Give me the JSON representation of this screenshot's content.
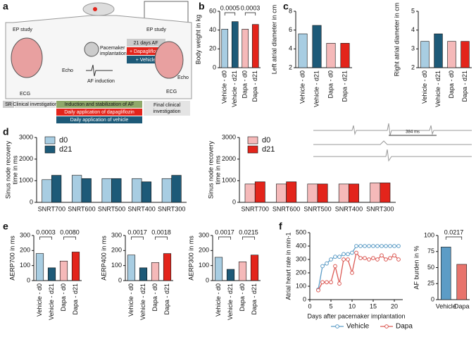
{
  "diagram": {
    "panel": "a",
    "ep_study_left": "EP study",
    "echo_left": "Echo",
    "ecg_left": "ECG",
    "pacemaker": [
      "Pacemaker",
      "implantation"
    ],
    "af_induction": "AF induction",
    "days_af": "21 days AF",
    "dapa": "+ Dapagliflozin",
    "vehicle": "+ Vehicle",
    "ep_study_right": "EP study",
    "echo_right": "Echo",
    "ecg_right": "ECG",
    "sr": "SR",
    "clinical": "Clinical investigation",
    "induction": "Induction and stabilization of AF",
    "daily_dapa": "Daily application of dapagliflozin",
    "daily_vehicle": "Daily application of vehicle",
    "final": [
      "Final clinical",
      "investigation"
    ]
  },
  "inset": {
    "label": "384 ms"
  },
  "chart_data": [
    {
      "type": "bar",
      "panel": "b",
      "ylabel": "Body weight in kg",
      "categories": [
        "Vehicle - d0",
        "Vehicle - d21",
        "Dapa - d0",
        "Dapa - d21"
      ],
      "values": [
        41,
        49,
        41,
        46
      ],
      "colors": [
        "#a8cde2",
        "#1d5a78",
        "#f5b9b9",
        "#e3241b"
      ],
      "ylim": [
        0,
        60
      ],
      "yticks": [
        0,
        20,
        40,
        60
      ],
      "annotations": [
        "0.0005",
        "0.0003"
      ]
    },
    {
      "type": "bar",
      "panel": "c",
      "ylabel": "Left atrial diameter in cm",
      "categories": [
        "Vehicle - d0",
        "Vehicle - d21",
        "Dapa - d0",
        "Dapa - d21"
      ],
      "values": [
        5.6,
        6.5,
        4.6,
        4.6
      ],
      "colors": [
        "#a8cde2",
        "#1d5a78",
        "#f5b9b9",
        "#e3241b"
      ],
      "ylim": [
        2,
        8
      ],
      "yticks": [
        2,
        4,
        6,
        8
      ]
    },
    {
      "type": "bar",
      "ylabel": "Right atrial diameter in cm",
      "categories": [
        "Vehicle - d0",
        "Vehicle - d21",
        "Dapa - d0",
        "Dapa - d21"
      ],
      "values": [
        3.4,
        3.8,
        3.4,
        3.4
      ],
      "colors": [
        "#a8cde2",
        "#1d5a78",
        "#f5b9b9",
        "#e3241b"
      ],
      "ylim": [
        2,
        5
      ],
      "yticks": [
        2,
        3,
        4,
        5
      ]
    },
    {
      "type": "bar",
      "panel": "d",
      "ylabel": [
        "Sinus node recovery",
        "time in ms"
      ],
      "categories": [
        "SNRT700",
        "SNRT600",
        "SNRT500",
        "SNRT400",
        "SNRT300"
      ],
      "series": [
        {
          "name": "d0",
          "color": "#a8cde2",
          "values": [
            1050,
            1250,
            1100,
            1100,
            1100
          ]
        },
        {
          "name": "d21",
          "color": "#1d5a78",
          "values": [
            1250,
            1100,
            1100,
            950,
            1250
          ]
        }
      ],
      "ylim": [
        0,
        3000
      ],
      "yticks": [
        0,
        1000,
        2000,
        3000
      ]
    },
    {
      "type": "bar",
      "ylabel": [
        "Sinus node recovery",
        "time in ms"
      ],
      "categories": [
        "SNRT700",
        "SNRT600",
        "SNRT500",
        "SNRT400",
        "SNRT300"
      ],
      "series": [
        {
          "name": "d0",
          "color": "#f5b9b9",
          "values": [
            850,
            850,
            850,
            850,
            900
          ]
        },
        {
          "name": "d21",
          "color": "#e3241b",
          "values": [
            950,
            950,
            850,
            850,
            900
          ]
        }
      ],
      "ylim": [
        0,
        3000
      ],
      "yticks": [
        0,
        1000,
        2000,
        3000
      ]
    },
    {
      "type": "bar",
      "panel": "e",
      "ylabel": "AERP700 in ms",
      "categories": [
        "Vehicle - d0",
        "Vehicle - d21",
        "Dapa - d0",
        "Dapa - d21"
      ],
      "values": [
        180,
        85,
        130,
        190
      ],
      "colors": [
        "#a8cde2",
        "#1d5a78",
        "#f5b9b9",
        "#e3241b"
      ],
      "ylim": [
        0,
        300
      ],
      "yticks": [
        0,
        100,
        200,
        300
      ],
      "annotations": [
        "0.0003",
        "0.0080"
      ]
    },
    {
      "type": "bar",
      "ylabel": "AERP400 in ms",
      "categories": [
        "Vehicle - d0",
        "Vehicle - d21",
        "Dapa - d0",
        "Dapa - d21"
      ],
      "values": [
        170,
        85,
        120,
        180
      ],
      "colors": [
        "#a8cde2",
        "#1d5a78",
        "#f5b9b9",
        "#e3241b"
      ],
      "ylim": [
        0,
        300
      ],
      "yticks": [
        0,
        100,
        200,
        300
      ],
      "annotations": [
        "0.0017",
        "0.0018"
      ]
    },
    {
      "type": "bar",
      "ylabel": "AERP300 in ms",
      "categories": [
        "Vehicle - d0",
        "Vehicle - d21",
        "Dapa - d0",
        "Dapa - d21"
      ],
      "values": [
        155,
        75,
        125,
        170
      ],
      "colors": [
        "#a8cde2",
        "#1d5a78",
        "#f5b9b9",
        "#e3241b"
      ],
      "ylim": [
        0,
        300
      ],
      "yticks": [
        0,
        100,
        200,
        300
      ],
      "annotations": [
        "0.0017",
        "0.0215"
      ]
    },
    {
      "type": "line",
      "panel": "f",
      "ylabel": "Atrial heart rate in min-1",
      "xlabel": "Days after pacemaker implantation",
      "x": [
        2,
        3,
        4,
        5,
        6,
        7,
        8,
        9,
        10,
        11,
        12,
        13,
        14,
        15,
        16,
        17,
        18,
        19,
        20,
        21
      ],
      "series": [
        {
          "name": "Vehicle",
          "color": "#5c9cc6",
          "values": [
            75,
            250,
            270,
            300,
            320,
            320,
            340,
            340,
            350,
            400,
            400,
            400,
            400,
            400,
            400,
            400,
            400,
            400,
            400,
            400
          ]
        },
        {
          "name": "Dapa",
          "color": "#dc5a55",
          "values": [
            70,
            130,
            130,
            130,
            250,
            120,
            300,
            300,
            200,
            350,
            310,
            310,
            300,
            310,
            300,
            330,
            300,
            310,
            330,
            300
          ]
        }
      ],
      "xlim": [
        0,
        22
      ],
      "xticks": [
        0,
        5,
        10,
        15,
        20
      ],
      "ylim": [
        0,
        500
      ],
      "yticks": [
        0,
        100,
        200,
        300,
        400,
        500
      ]
    },
    {
      "type": "bar",
      "ylabel": "AF burden in %",
      "categories": [
        "Vehicle",
        "Dapa"
      ],
      "values": [
        82,
        55
      ],
      "colors": [
        "#5c9cc6",
        "#e8736c"
      ],
      "ylim": [
        0,
        100
      ],
      "yticks": [
        0,
        25,
        50,
        75,
        100
      ],
      "annotations": [
        "0.0217"
      ]
    }
  ]
}
